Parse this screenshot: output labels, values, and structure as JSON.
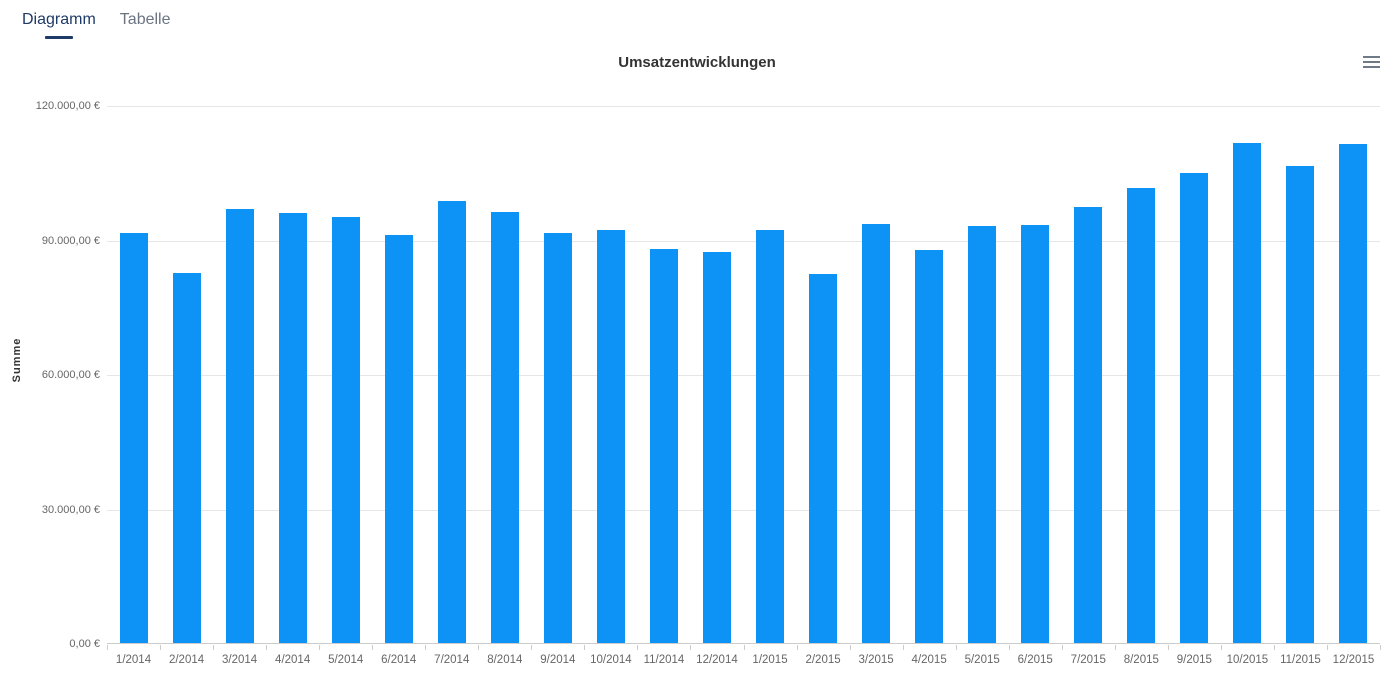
{
  "tabs": [
    {
      "label": "Diagramm",
      "active": true
    },
    {
      "label": "Tabelle",
      "active": false
    }
  ],
  "menu": {
    "icon": "hamburger-icon"
  },
  "chart_data": {
    "type": "bar",
    "title": "Umsatzentwicklungen",
    "xlabel": "",
    "ylabel": "Summe",
    "ylim": [
      0,
      120000
    ],
    "grid": "horizontal",
    "legend": "none",
    "yticks": [
      {
        "value": 0,
        "label": "0,00 €"
      },
      {
        "value": 30000,
        "label": "30.000,00 €"
      },
      {
        "value": 60000,
        "label": "60.000,00 €"
      },
      {
        "value": 90000,
        "label": "90.000,00 €"
      },
      {
        "value": 120000,
        "label": "120.000,00 €"
      }
    ],
    "categories": [
      "1/2014",
      "2/2014",
      "3/2014",
      "4/2014",
      "5/2014",
      "6/2014",
      "7/2014",
      "8/2014",
      "9/2014",
      "10/2014",
      "11/2014",
      "12/2014",
      "1/2015",
      "2/2015",
      "3/2015",
      "4/2015",
      "5/2015",
      "6/2015",
      "7/2015",
      "8/2015",
      "9/2015",
      "10/2015",
      "11/2015",
      "12/2015"
    ],
    "values": [
      91500,
      82600,
      96700,
      96000,
      95000,
      91100,
      98700,
      96100,
      91500,
      92100,
      87800,
      87200,
      92200,
      82300,
      93500,
      87600,
      93100,
      93300,
      97300,
      101600,
      104800,
      111600,
      106400,
      111400
    ],
    "currency_suffix": " €"
  },
  "colors": {
    "bar": "#0d92f5",
    "grid": "#e6e6e6",
    "axis": "#cccccc",
    "labels": "#666666",
    "title": "#333333",
    "tab_active": "#1e3a66",
    "tab_inactive": "#6b7482",
    "menu_icon": "#6e7a87"
  }
}
